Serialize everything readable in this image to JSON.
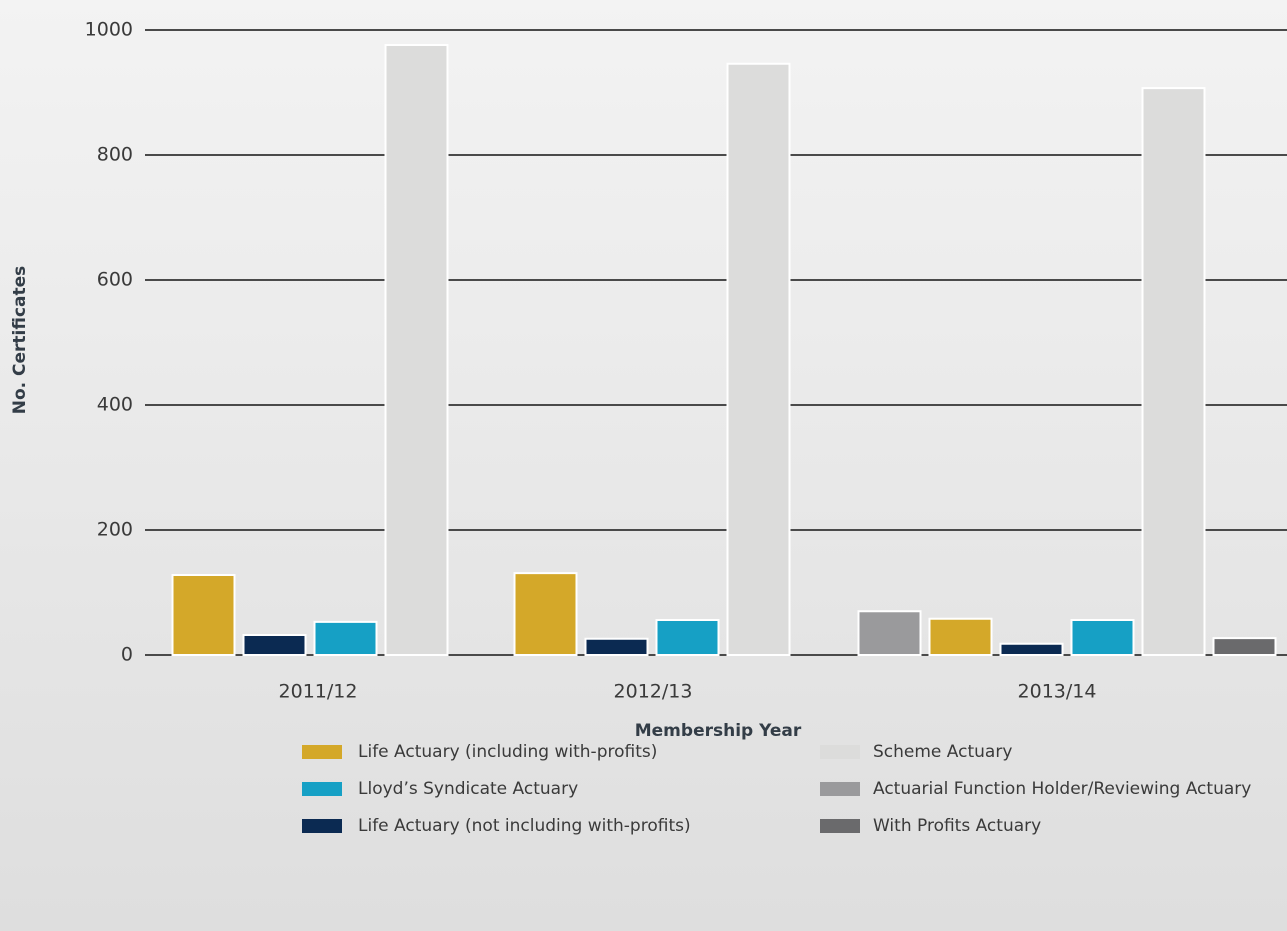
{
  "chart_data": {
    "type": "bar",
    "xlabel": "Membership Year",
    "ylabel": "No. Certificates",
    "categories": [
      "2011/12",
      "2012/13",
      "2013/14"
    ],
    "series": [
      {
        "name": "Life Actuary (including with-profits)",
        "color": "#d4a829",
        "values": [
          128,
          131,
          58
        ]
      },
      {
        "name": "Lloyd’s Syndicate Actuary",
        "color": "#16a0c5",
        "values": [
          53,
          56,
          56
        ]
      },
      {
        "name": "Life Actuary (not including with-profits)",
        "color": "#0b2a52",
        "values": [
          32,
          26,
          18
        ]
      },
      {
        "name": "Scheme Actuary",
        "color": "#dcdcdb",
        "values": [
          976,
          946,
          907
        ]
      },
      {
        "name": "Actuarial Function Holder/Reviewing Actuary",
        "color": "#9a9a9c",
        "values": [
          null,
          null,
          70
        ]
      },
      {
        "name": "With Profits Actuary",
        "color": "#6a6a6c",
        "values": [
          null,
          null,
          27
        ]
      }
    ],
    "ylim": [
      0,
      1000
    ],
    "yticks": [
      0,
      200,
      400,
      600,
      800,
      1000
    ],
    "grid": true
  }
}
